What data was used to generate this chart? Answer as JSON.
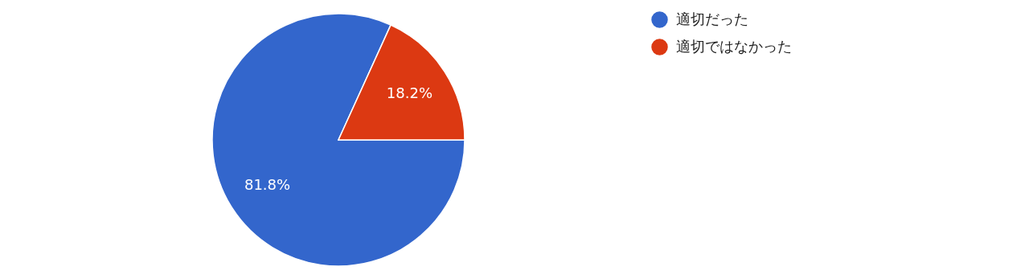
{
  "chart_data": {
    "type": "pie",
    "categories": [
      "適切だった",
      "適切ではなかった"
    ],
    "values": [
      81.8,
      18.2
    ],
    "colors": [
      "#3366cc",
      "#dc3912"
    ],
    "value_labels": [
      "81.8%",
      "18.2%"
    ],
    "legend": "top right"
  }
}
